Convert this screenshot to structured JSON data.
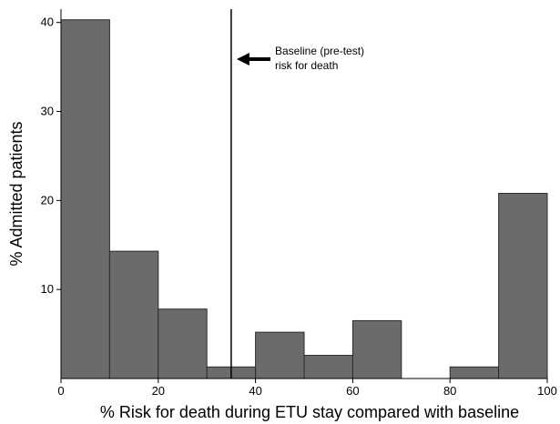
{
  "chart_data": {
    "type": "bar",
    "subtype": "histogram",
    "bin_edges": [
      0,
      10,
      20,
      30,
      40,
      50,
      60,
      70,
      80,
      90,
      100
    ],
    "values": [
      40.3,
      14.3,
      7.8,
      1.3,
      5.2,
      2.6,
      6.5,
      0,
      1.3,
      20.8
    ],
    "xlabel": "% Risk for death during ETU stay compared with baseline",
    "ylabel": "% Admitted patients",
    "xlim": [
      0,
      100
    ],
    "ylim": [
      0,
      41.5
    ],
    "x_ticks": [
      0,
      20,
      40,
      60,
      80,
      100
    ],
    "y_ticks": [
      10,
      20,
      30,
      40
    ],
    "grid": false,
    "reference_line": {
      "x": 35,
      "label_lines": [
        "Baseline (pre-test)",
        "risk for death"
      ]
    },
    "colors": {
      "bar_fill": "#6b6b6b",
      "bar_stroke": "#2b2b2b",
      "axis": "#000000"
    }
  }
}
